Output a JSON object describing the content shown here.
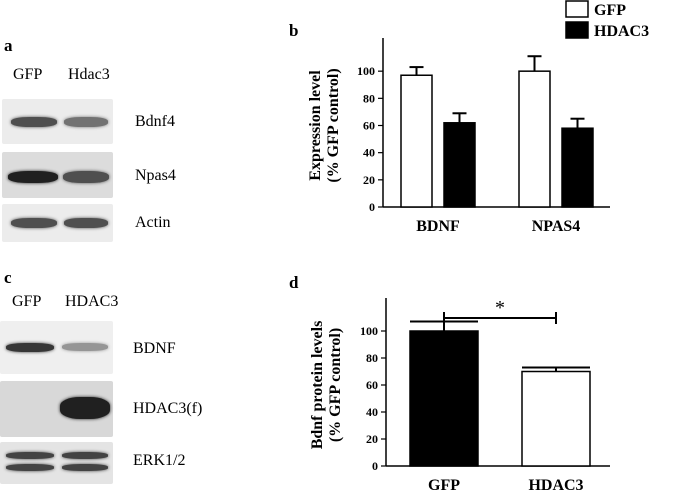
{
  "legend": {
    "items": [
      {
        "label": "GFP",
        "fill": "#ffffff"
      },
      {
        "label": "HDAC3",
        "fill": "#000000"
      }
    ]
  },
  "panel_a": {
    "letter": "a",
    "lanes": [
      "GFP",
      "Hdac3"
    ],
    "rows": [
      {
        "label": "Bdnf4",
        "band_strength": [
          0.75,
          0.6
        ]
      },
      {
        "label": "Npas4",
        "band_strength": [
          0.95,
          0.75
        ]
      },
      {
        "label": "Actin",
        "band_strength": [
          0.75,
          0.75
        ]
      }
    ]
  },
  "panel_c": {
    "letter": "c",
    "lanes": [
      "GFP",
      "HDAC3"
    ],
    "rows": [
      {
        "label": "BDNF",
        "band_strength": [
          0.85,
          0.45
        ]
      },
      {
        "label": "HDAC3(f)",
        "band_strength": [
          0.0,
          0.95
        ]
      },
      {
        "label": "ERK1/2",
        "band_strength": [
          0.8,
          0.8
        ]
      }
    ]
  },
  "chart_data": [
    {
      "panel": "b",
      "type": "bar",
      "categories": [
        "BDNF",
        "NPAS4"
      ],
      "series": [
        {
          "name": "GFP",
          "values": [
            97,
            100
          ],
          "errors": [
            6,
            11
          ]
        },
        {
          "name": "HDAC3",
          "values": [
            62,
            58
          ],
          "errors": [
            7,
            7
          ]
        }
      ],
      "title": "",
      "xlabel": "",
      "ylabel": "Expression level\n(% GFP control)",
      "ylabel_lines": [
        "Expression level",
        "(% GFP control)"
      ],
      "ylim": [
        0,
        120
      ],
      "yticks": [
        0,
        20,
        40,
        60,
        80,
        100
      ],
      "grid": false,
      "legend_position": "top-right"
    },
    {
      "panel": "d",
      "type": "bar",
      "categories": [
        "GFP",
        "HDAC3"
      ],
      "values": [
        100,
        70
      ],
      "errors": [
        7,
        3
      ],
      "fills": [
        "#000000",
        "#ffffff"
      ],
      "title": "",
      "xlabel": "",
      "ylabel": "Bdnf protein levels\n(% GFP control)",
      "ylabel_lines": [
        "Bdnf protein levels",
        "(% GFP control)"
      ],
      "ylim": [
        0,
        120
      ],
      "yticks": [
        0,
        20,
        40,
        60,
        80,
        100
      ],
      "grid": false,
      "annotation": "*"
    }
  ]
}
